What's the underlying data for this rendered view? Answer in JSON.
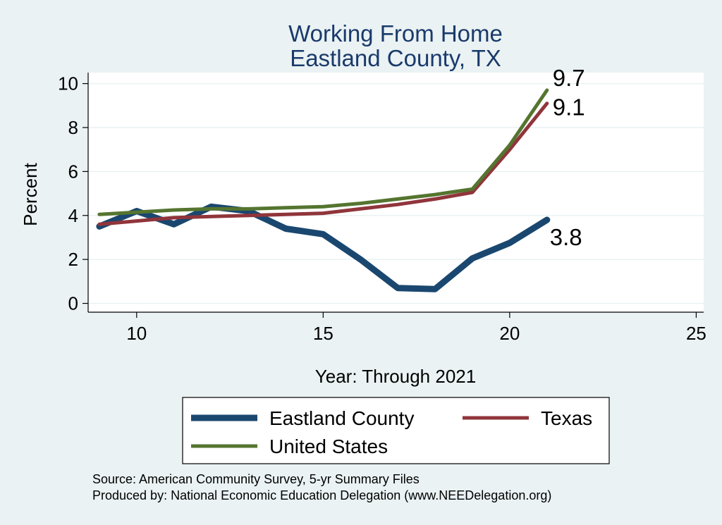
{
  "chart_data": {
    "type": "line",
    "title": [
      "Working From Home",
      "Eastland County, TX"
    ],
    "xlabel": "Year: Through 2021",
    "ylabel": "Percent",
    "xlim": [
      8.7,
      25.2
    ],
    "ylim": [
      -0.4,
      10.5
    ],
    "xticks": [
      10,
      15,
      20,
      25
    ],
    "yticks": [
      0,
      2,
      4,
      6,
      8,
      10
    ],
    "grid": "horizontal",
    "legend_position": "bottom",
    "x": [
      9,
      10,
      11,
      12,
      13,
      14,
      15,
      16,
      17,
      18,
      19,
      20,
      21
    ],
    "series": [
      {
        "name": "Eastland County",
        "color": "#1a476f",
        "values": [
          3.5,
          4.2,
          3.6,
          4.4,
          4.2,
          3.4,
          3.15,
          2.0,
          0.7,
          0.65,
          2.05,
          2.75,
          3.8
        ],
        "end_label": "3.8"
      },
      {
        "name": "Texas",
        "color": "#90353b",
        "values": [
          3.6,
          3.75,
          3.9,
          3.95,
          4.0,
          4.05,
          4.1,
          4.3,
          4.5,
          4.75,
          5.05,
          7.0,
          9.1
        ],
        "end_label": "9.1"
      },
      {
        "name": "United States",
        "color": "#55752f",
        "values": [
          4.05,
          4.15,
          4.25,
          4.3,
          4.3,
          4.35,
          4.4,
          4.55,
          4.75,
          4.95,
          5.2,
          7.2,
          9.7
        ],
        "end_label": "9.7"
      }
    ]
  },
  "notes": [
    "Source: American Community Survey, 5-yr Summary Files",
    "Produced by: National Economic Education Delegation (www.NEEDelegation.org)"
  ]
}
